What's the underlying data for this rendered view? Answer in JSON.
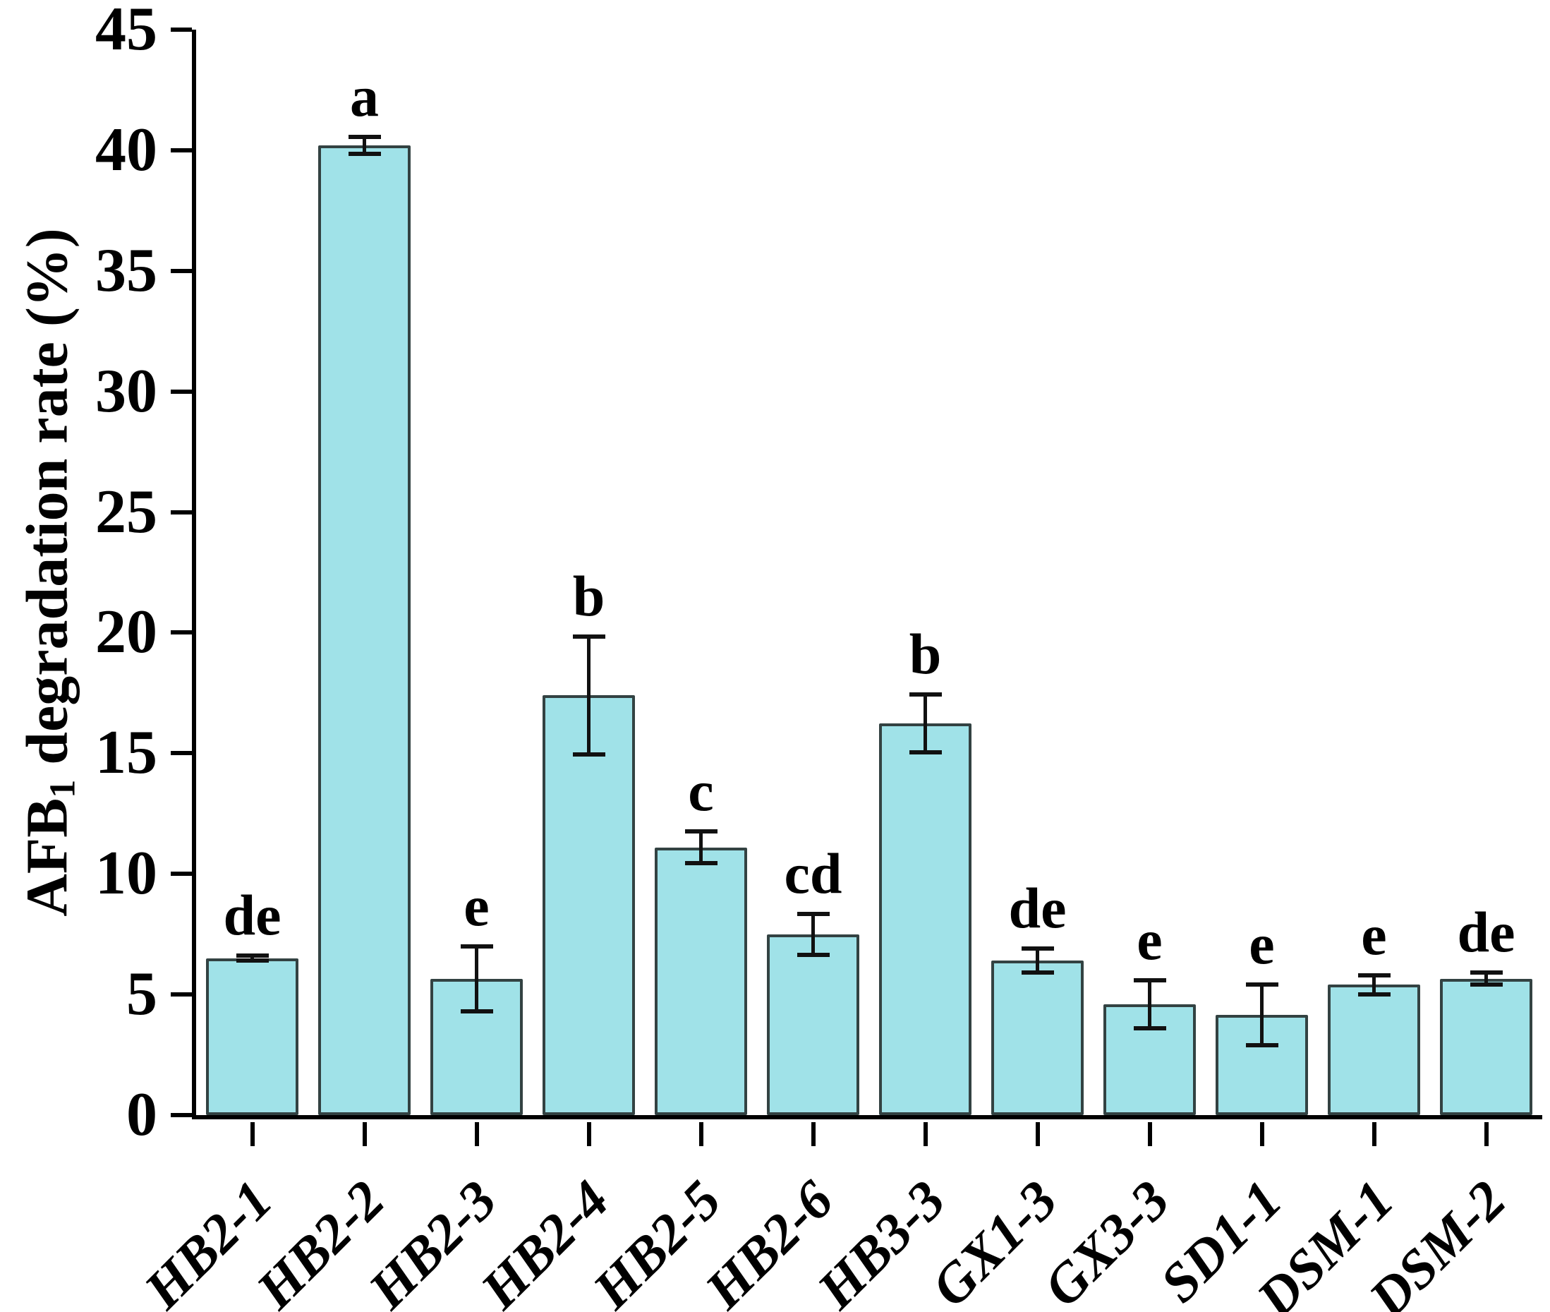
{
  "chart_data": {
    "type": "bar",
    "title": "",
    "ylabel": "AFB1 degradation rate (%)",
    "ylabel_parts": {
      "pre": "AFB",
      "sub": "1",
      "post": " degradation rate (%)"
    },
    "xlabel": "",
    "ylim": [
      0,
      45
    ],
    "yticks": [
      0,
      5,
      10,
      15,
      20,
      25,
      30,
      35,
      40,
      45
    ],
    "grid": false,
    "legend": null,
    "categories": [
      "HB2-1",
      "HB2-2",
      "HB2-3",
      "HB2-4",
      "HB2-5",
      "HB2-6",
      "HB3-3",
      "GX1-3",
      "GX3-3",
      "SD1-1",
      "DSM-1",
      "DSM-2"
    ],
    "series": [
      {
        "name": "AFB1 degradation rate",
        "values": [
          6.5,
          40.2,
          5.65,
          17.4,
          11.1,
          7.5,
          16.25,
          6.4,
          4.6,
          4.15,
          5.4,
          5.65
        ],
        "errors": [
          0.1,
          0.35,
          1.35,
          2.45,
          0.65,
          0.85,
          1.2,
          0.5,
          1.0,
          1.25,
          0.4,
          0.25
        ],
        "sig_letters": [
          "de",
          "a",
          "e",
          "b",
          "c",
          "cd",
          "b",
          "de",
          "e",
          "e",
          "e",
          "de"
        ]
      }
    ],
    "colors": {
      "bar_fill": "#a0e2e8",
      "bar_border": "#334242",
      "axis": "#000000",
      "error_bar": "#111111",
      "text": "#000000",
      "background": "#ffffff"
    }
  }
}
